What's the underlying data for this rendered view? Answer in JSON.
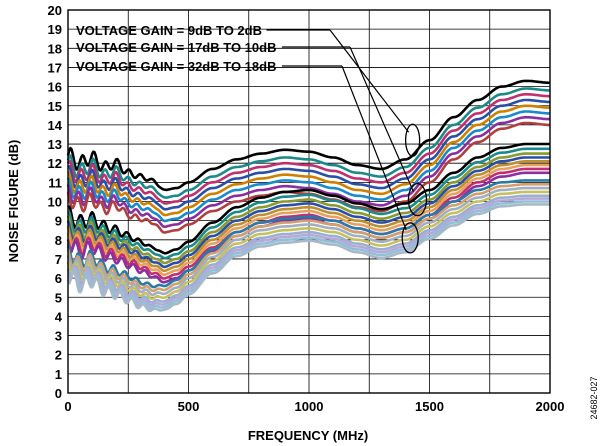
{
  "chart_data": {
    "type": "line",
    "xlabel": "FREQUENCY (MHz)",
    "ylabel": "NOISE FIGURE (dB)",
    "xlim": [
      0,
      2000
    ],
    "ylim": [
      0,
      20
    ],
    "x_ticks": [
      0,
      500,
      1000,
      1500,
      2000
    ],
    "y_ticks": [
      0,
      1,
      2,
      3,
      4,
      5,
      6,
      7,
      8,
      9,
      10,
      11,
      12,
      13,
      14,
      15,
      16,
      17,
      18,
      19,
      20
    ],
    "x_gridlines": [
      0,
      250,
      500,
      750,
      1000,
      1250,
      1500,
      1750,
      2000
    ],
    "grid": true,
    "figure_id": "24682-027",
    "annotations": [
      {
        "text": "VOLTAGE GAIN = 9dB TO 2dB",
        "pointer_x": 1430,
        "pointer_y": 13.2
      },
      {
        "text": "VOLTAGE GAIN = 17dB TO 10dB",
        "pointer_x": 1450,
        "pointer_y": 10.1
      },
      {
        "text": "VOLTAGE GAIN = 32dB TO 18dB",
        "pointer_x": 1420,
        "pointer_y": 8.1
      }
    ],
    "groups": [
      {
        "x": [
          0,
          50,
          100,
          150,
          200,
          250,
          300,
          350,
          400,
          450,
          500,
          600,
          700,
          800,
          900,
          1000,
          1100,
          1200,
          1300,
          1400,
          1500,
          1600,
          1700,
          1800,
          1900,
          2000
        ],
        "base": [
          12.0,
          11.6,
          11.9,
          11.4,
          11.6,
          11.1,
          10.9,
          10.7,
          10.2,
          10.3,
          10.6,
          11.3,
          11.8,
          12.1,
          12.3,
          12.2,
          11.9,
          11.5,
          11.3,
          11.8,
          12.8,
          14.0,
          14.9,
          15.6,
          15.9,
          15.8
        ],
        "offsets": [
          0.4,
          0.0,
          -0.3,
          -0.6,
          -0.9,
          -1.2,
          -1.5,
          -1.8
        ],
        "colors": [
          "#000000",
          "#1a8a8a",
          "#c0306f",
          "#2a4fa8",
          "#d08000",
          "#1a8acc",
          "#8a2ea0",
          "#b04040"
        ]
      },
      {
        "x": [
          0,
          50,
          100,
          150,
          200,
          250,
          300,
          350,
          400,
          450,
          500,
          600,
          700,
          800,
          900,
          1000,
          1100,
          1200,
          1300,
          1400,
          1500,
          1600,
          1700,
          1800,
          1900,
          2000
        ],
        "base": [
          8.6,
          8.2,
          8.4,
          8.0,
          7.8,
          7.5,
          7.2,
          6.9,
          6.6,
          6.8,
          7.2,
          8.2,
          9.0,
          9.5,
          9.8,
          9.9,
          9.6,
          9.2,
          8.9,
          9.2,
          9.9,
          10.8,
          11.6,
          12.1,
          12.3,
          12.3
        ],
        "offsets": [
          0.7,
          0.45,
          0.2,
          0.0,
          -0.2,
          -0.4,
          -0.6,
          -0.8
        ],
        "colors": [
          "#000000",
          "#1a8a8a",
          "#8a9a30",
          "#2a4fa8",
          "#c09030",
          "#e8a060",
          "#c0306f",
          "#8a2ea0"
        ]
      },
      {
        "x": [
          0,
          50,
          100,
          150,
          200,
          250,
          300,
          350,
          400,
          450,
          500,
          600,
          700,
          800,
          900,
          1000,
          1100,
          1200,
          1300,
          1400,
          1500,
          1600,
          1700,
          1800,
          1900,
          2000
        ],
        "base": [
          6.8,
          6.3,
          6.5,
          6.0,
          5.8,
          5.5,
          5.2,
          5.0,
          5.0,
          5.3,
          5.8,
          6.9,
          7.8,
          8.3,
          8.5,
          8.6,
          8.4,
          8.0,
          7.7,
          8.0,
          8.7,
          9.4,
          10.0,
          10.4,
          10.5,
          10.5
        ],
        "offsets": [
          0.6,
          0.4,
          0.2,
          0.0,
          -0.2,
          -0.35,
          -0.5,
          -0.65
        ],
        "colors": [
          "#2a7aa8",
          "#d0a070",
          "#a0b0c0",
          "#c8c060",
          "#9ab0d0",
          "#b8a8d8",
          "#90c0d8",
          "#a8b8c8"
        ]
      }
    ]
  }
}
